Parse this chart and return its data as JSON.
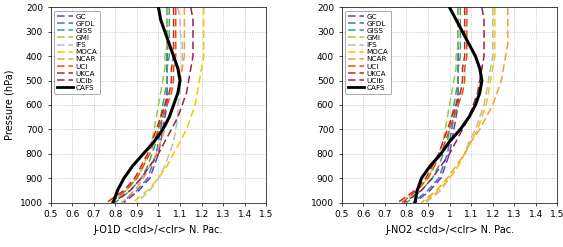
{
  "title_left": "J-O1D <cld>/<clr> N. Pac.",
  "title_right": "J-NO2 <cld>/<clr> N. Pac.",
  "ylabel": "Pressure (hPa)",
  "xlim": [
    0.5,
    1.5
  ],
  "ylim": [
    1000,
    200
  ],
  "xticks": [
    0.5,
    0.6,
    0.7,
    0.8,
    0.9,
    1.0,
    1.1,
    1.2,
    1.3,
    1.4,
    1.5
  ],
  "yticks": [
    200,
    300,
    400,
    500,
    600,
    700,
    800,
    900,
    1000
  ],
  "pressure_levels": [
    200,
    250,
    300,
    350,
    400,
    450,
    500,
    550,
    600,
    650,
    700,
    750,
    800,
    850,
    900,
    950,
    1000
  ],
  "models": {
    "GC": {
      "color": "#6644aa"
    },
    "GFDL": {
      "color": "#4477bb"
    },
    "GISS": {
      "color": "#33aa77"
    },
    "GMI": {
      "color": "#99cc44"
    },
    "IFS": {
      "color": "#bbbbbb"
    },
    "MOCA": {
      "color": "#eecc00"
    },
    "NCAR": {
      "color": "#ff9933"
    },
    "UCI": {
      "color": "#dd5500"
    },
    "UKCA": {
      "color": "#cc2222"
    },
    "UCIb": {
      "color": "#992255"
    },
    "CAFS": {
      "color": "#000000"
    }
  },
  "O1D": {
    "GC": [
      1.04,
      1.04,
      1.04,
      1.04,
      1.04,
      1.04,
      1.04,
      1.04,
      1.04,
      1.03,
      1.02,
      1.01,
      1.0,
      0.98,
      0.96,
      0.91,
      0.84
    ],
    "GFDL": [
      1.04,
      1.04,
      1.04,
      1.04,
      1.04,
      1.04,
      1.04,
      1.04,
      1.03,
      1.02,
      1.01,
      1.0,
      0.99,
      0.97,
      0.95,
      0.9,
      0.83
    ],
    "GISS": [
      1.05,
      1.05,
      1.05,
      1.05,
      1.05,
      1.04,
      1.04,
      1.03,
      1.02,
      1.01,
      1.0,
      0.99,
      0.97,
      0.95,
      0.92,
      0.87,
      0.8
    ],
    "GMI": [
      1.04,
      1.04,
      1.04,
      1.04,
      1.03,
      1.03,
      1.02,
      1.01,
      1.0,
      0.99,
      0.98,
      0.97,
      0.95,
      0.93,
      0.9,
      0.85,
      0.78
    ],
    "IFS": [
      1.09,
      1.1,
      1.1,
      1.11,
      1.11,
      1.11,
      1.1,
      1.1,
      1.09,
      1.09,
      1.08,
      1.07,
      1.05,
      1.03,
      1.0,
      0.96,
      0.9
    ],
    "MOCA": [
      1.21,
      1.21,
      1.21,
      1.21,
      1.21,
      1.2,
      1.19,
      1.18,
      1.17,
      1.15,
      1.13,
      1.1,
      1.07,
      1.04,
      1.0,
      0.95,
      0.88
    ],
    "NCAR": [
      1.12,
      1.12,
      1.12,
      1.12,
      1.12,
      1.11,
      1.1,
      1.09,
      1.07,
      1.05,
      1.03,
      1.01,
      0.99,
      0.96,
      0.93,
      0.89,
      0.83
    ],
    "UCI": [
      1.08,
      1.08,
      1.08,
      1.08,
      1.08,
      1.07,
      1.07,
      1.06,
      1.04,
      1.02,
      1.0,
      0.98,
      0.96,
      0.93,
      0.9,
      0.85,
      0.78
    ],
    "UKCA": [
      1.07,
      1.07,
      1.07,
      1.07,
      1.07,
      1.06,
      1.06,
      1.05,
      1.03,
      1.01,
      0.99,
      0.97,
      0.95,
      0.92,
      0.89,
      0.84,
      0.76
    ],
    "UCIb": [
      1.15,
      1.16,
      1.16,
      1.16,
      1.16,
      1.15,
      1.14,
      1.13,
      1.11,
      1.09,
      1.06,
      1.03,
      1.0,
      0.96,
      0.92,
      0.87,
      0.79
    ],
    "CAFS": [
      1.0,
      1.01,
      1.03,
      1.05,
      1.07,
      1.09,
      1.1,
      1.09,
      1.07,
      1.05,
      1.02,
      0.98,
      0.93,
      0.88,
      0.84,
      0.81,
      0.79
    ]
  },
  "NO2": {
    "GC": [
      1.04,
      1.04,
      1.04,
      1.04,
      1.04,
      1.04,
      1.04,
      1.04,
      1.04,
      1.03,
      1.02,
      1.01,
      1.0,
      0.98,
      0.96,
      0.91,
      0.84
    ],
    "GFDL": [
      1.04,
      1.04,
      1.04,
      1.04,
      1.04,
      1.04,
      1.04,
      1.04,
      1.03,
      1.02,
      1.01,
      1.0,
      0.99,
      0.97,
      0.95,
      0.9,
      0.83
    ],
    "GISS": [
      1.05,
      1.05,
      1.05,
      1.05,
      1.05,
      1.04,
      1.04,
      1.03,
      1.02,
      1.01,
      1.0,
      0.99,
      0.97,
      0.95,
      0.92,
      0.87,
      0.8
    ],
    "GMI": [
      1.04,
      1.04,
      1.04,
      1.04,
      1.03,
      1.03,
      1.02,
      1.01,
      1.0,
      0.99,
      0.98,
      0.97,
      0.95,
      0.93,
      0.9,
      0.85,
      0.78
    ],
    "IFS": [
      1.2,
      1.2,
      1.2,
      1.2,
      1.2,
      1.19,
      1.18,
      1.17,
      1.16,
      1.14,
      1.12,
      1.09,
      1.07,
      1.04,
      1.0,
      0.96,
      0.89
    ],
    "MOCA": [
      1.21,
      1.21,
      1.21,
      1.21,
      1.21,
      1.2,
      1.19,
      1.18,
      1.17,
      1.15,
      1.13,
      1.1,
      1.07,
      1.04,
      1.0,
      0.95,
      0.88
    ],
    "NCAR": [
      1.27,
      1.27,
      1.27,
      1.27,
      1.26,
      1.25,
      1.24,
      1.22,
      1.2,
      1.17,
      1.14,
      1.1,
      1.07,
      1.03,
      0.99,
      0.94,
      0.87
    ],
    "UCI": [
      1.08,
      1.08,
      1.08,
      1.08,
      1.08,
      1.07,
      1.07,
      1.06,
      1.04,
      1.02,
      1.0,
      0.98,
      0.96,
      0.93,
      0.9,
      0.85,
      0.78
    ],
    "UKCA": [
      1.07,
      1.07,
      1.07,
      1.07,
      1.07,
      1.06,
      1.06,
      1.05,
      1.03,
      1.01,
      0.99,
      0.97,
      0.95,
      0.92,
      0.89,
      0.84,
      0.76
    ],
    "UCIb": [
      1.15,
      1.16,
      1.16,
      1.16,
      1.16,
      1.15,
      1.14,
      1.13,
      1.11,
      1.09,
      1.06,
      1.03,
      1.0,
      0.96,
      0.92,
      0.87,
      0.79
    ],
    "CAFS": [
      1.0,
      1.03,
      1.06,
      1.09,
      1.12,
      1.14,
      1.15,
      1.14,
      1.12,
      1.09,
      1.05,
      1.0,
      0.96,
      0.91,
      0.87,
      0.85,
      0.84
    ]
  },
  "legend_order": [
    "GC",
    "GFDL",
    "GISS",
    "GMI",
    "IFS",
    "MOCA",
    "NCAR",
    "UCI",
    "UKCA",
    "UCIb",
    "CAFS"
  ],
  "figsize": [
    5.63,
    2.47
  ],
  "dpi": 100
}
